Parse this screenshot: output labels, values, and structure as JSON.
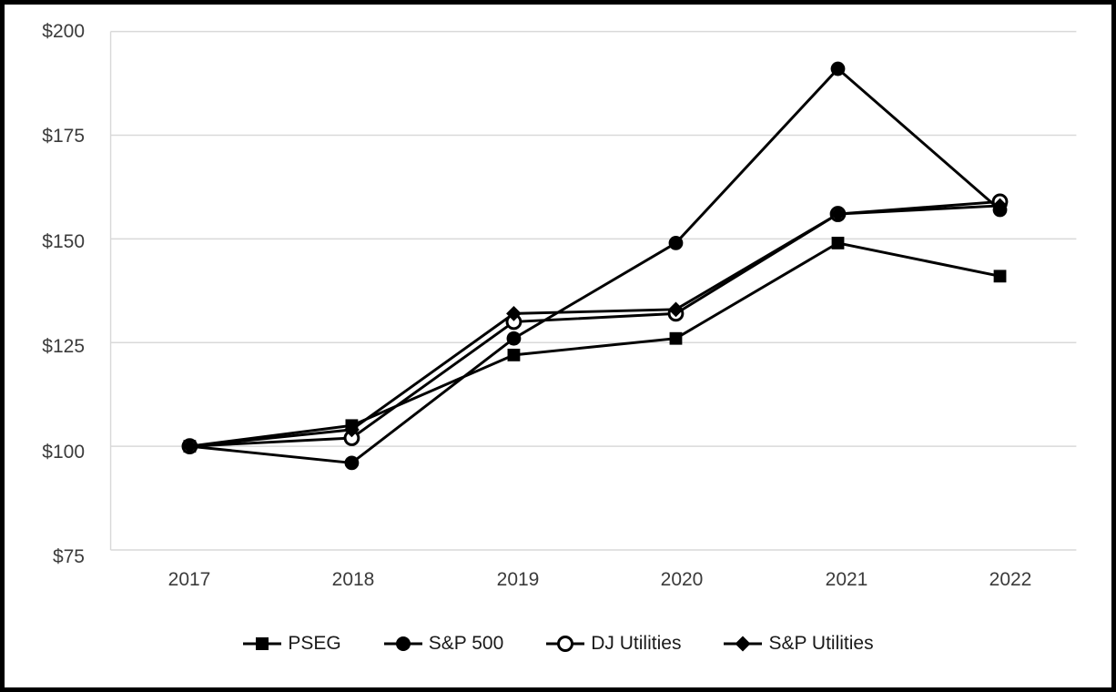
{
  "chart_data": {
    "type": "line",
    "title": "",
    "xlabel": "",
    "ylabel": "",
    "x": [
      "2017",
      "2018",
      "2019",
      "2020",
      "2021",
      "2022"
    ],
    "xtick_labels": [
      "2017",
      "2018",
      "2019",
      "2020",
      "2021",
      "2022"
    ],
    "yticks": [
      200,
      175,
      150,
      125,
      100,
      75
    ],
    "ytick_labels": [
      "$200",
      "$175",
      "$150",
      "$125",
      "$100",
      "$75"
    ],
    "ylim": [
      75,
      200
    ],
    "grid": true,
    "legend_position": "bottom",
    "colors": {
      "line": "#000000",
      "grid": "#d9d9d9",
      "tick_text": "#3b3b3b",
      "background": "#ffffff",
      "frame_border": "#000000"
    },
    "series": [
      {
        "name": "PSEG",
        "marker": "square",
        "marker_fill": "filled",
        "values": [
          100,
          105,
          122,
          126,
          149,
          141
        ]
      },
      {
        "name": "S&P 500",
        "marker": "circle",
        "marker_fill": "filled",
        "values": [
          100,
          96,
          126,
          149,
          191,
          157
        ]
      },
      {
        "name": "DJ Utilities",
        "marker": "circle",
        "marker_fill": "open",
        "values": [
          100,
          102,
          130,
          132,
          156,
          159
        ]
      },
      {
        "name": "S&P Utilities",
        "marker": "diamond",
        "marker_fill": "filled",
        "values": [
          100,
          104,
          132,
          133,
          156,
          158
        ]
      }
    ]
  }
}
